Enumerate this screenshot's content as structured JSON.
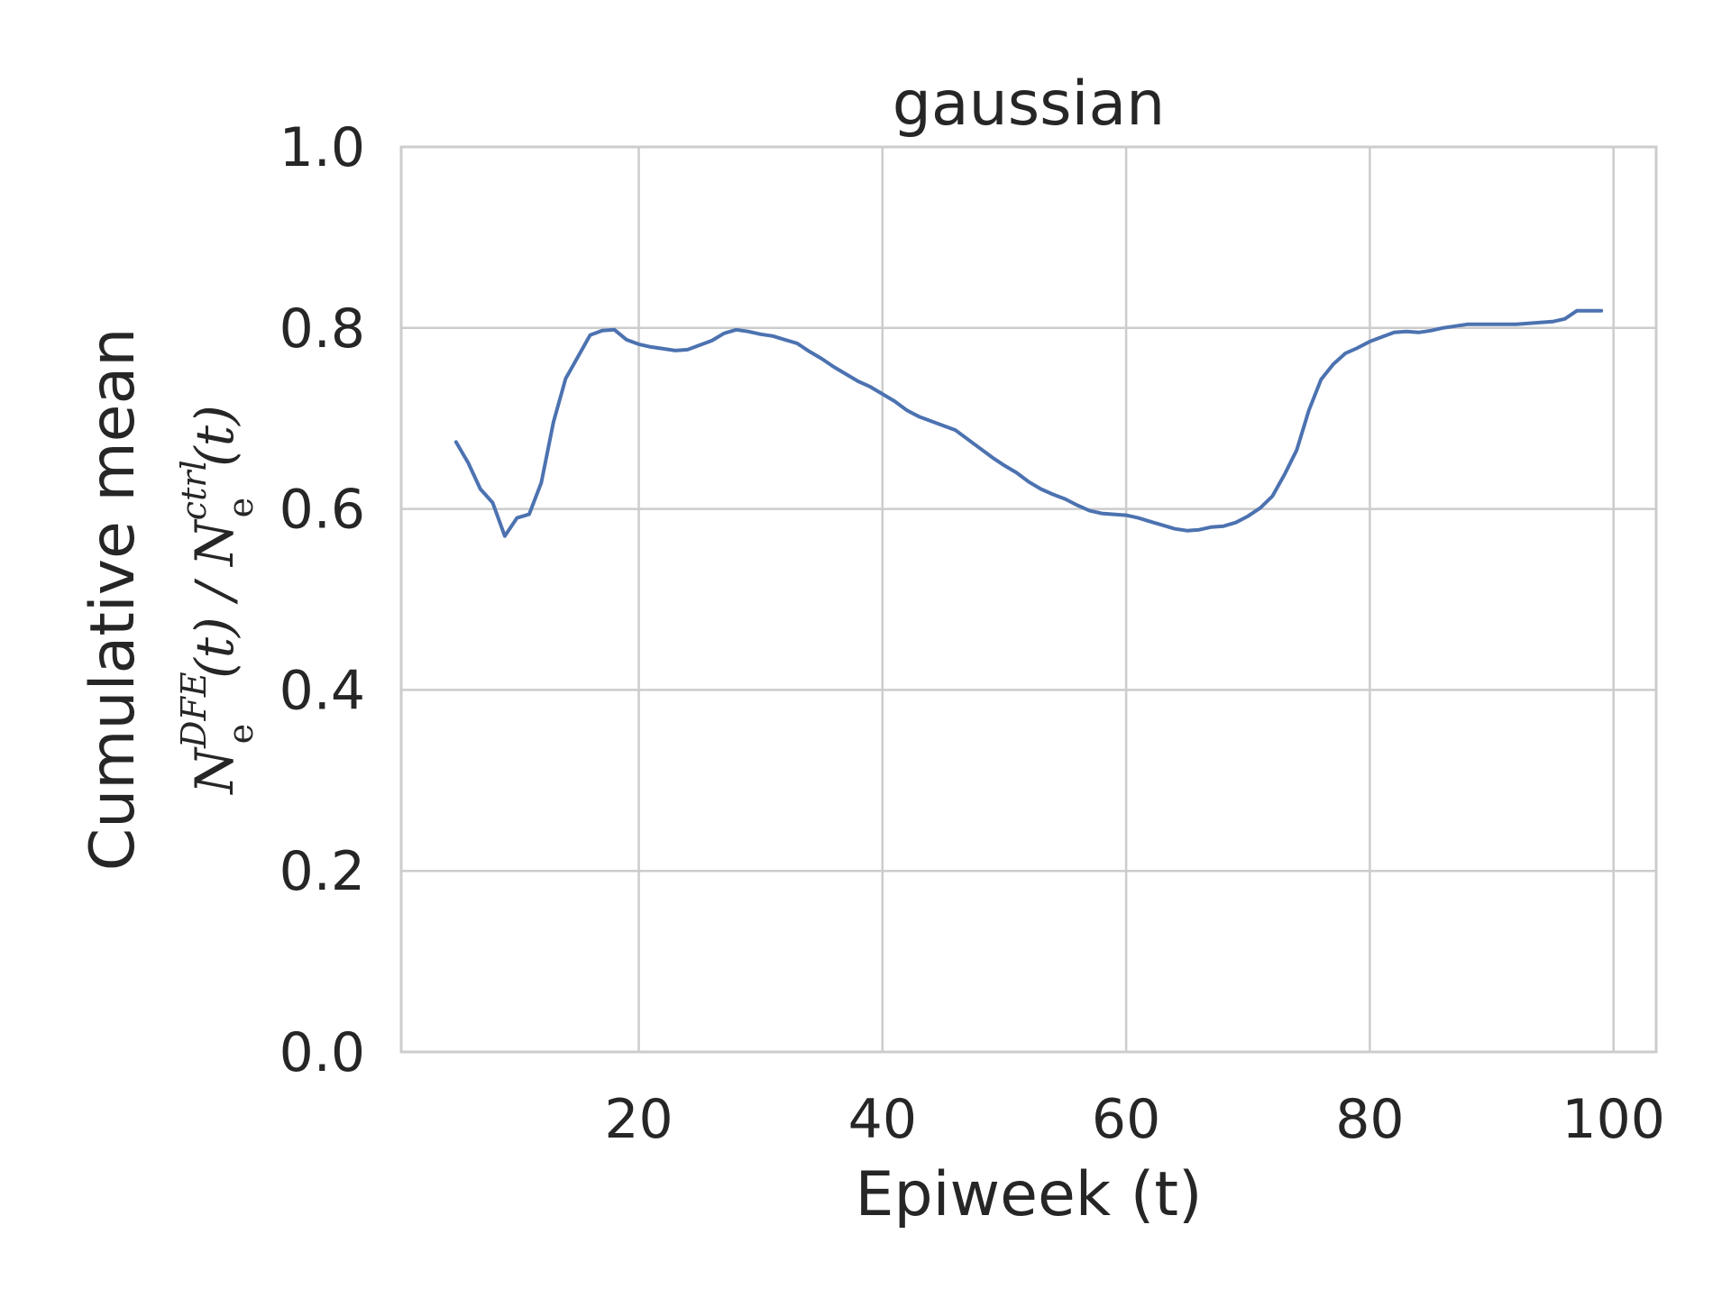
{
  "chart_data": {
    "type": "line",
    "title": "gaussian",
    "xlabel": "Epiweek (t)",
    "ylabel_line1": "Cumulative mean",
    "ylabel_line2": {
      "n1": "N",
      "sub1": "e",
      "sup1": "DFE",
      "mid": "(t) / ",
      "n2": "N",
      "sub2": "e",
      "sup2": "ctrl",
      "end": "(t)"
    },
    "xlim": [
      0.5,
      103.5
    ],
    "ylim": [
      0,
      1
    ],
    "xticks": [
      20,
      40,
      60,
      80,
      100
    ],
    "xtick_labels": [
      "20",
      "40",
      "60",
      "80",
      "100"
    ],
    "yticks": [
      0,
      0.2,
      0.4,
      0.6,
      0.8,
      1.0
    ],
    "ytick_labels": [
      "0.0",
      "0.2",
      "0.4",
      "0.6",
      "0.8",
      "1.0"
    ],
    "grid": true,
    "series": [
      {
        "color": "#4c72b0",
        "x": [
          5,
          6,
          7,
          8,
          9,
          10,
          11,
          12,
          13,
          14,
          15,
          16,
          17,
          18,
          19,
          20,
          21,
          22,
          23,
          24,
          25,
          26,
          27,
          28,
          29,
          30,
          31,
          32,
          33,
          34,
          35,
          36,
          37,
          38,
          39,
          40,
          41,
          42,
          43,
          44,
          45,
          46,
          47,
          48,
          49,
          50,
          51,
          52,
          53,
          54,
          55,
          56,
          57,
          58,
          59,
          60,
          61,
          62,
          63,
          64,
          65,
          66,
          67,
          68,
          69,
          70,
          71,
          72,
          73,
          74,
          75,
          76,
          77,
          78,
          79,
          80,
          81,
          82,
          83,
          84,
          85,
          86,
          87,
          88,
          89,
          90,
          91,
          92,
          93,
          94,
          95,
          96,
          97,
          98,
          99
        ],
        "y": [
          0.674,
          0.651,
          0.622,
          0.607,
          0.57,
          0.59,
          0.594,
          0.629,
          0.696,
          0.744,
          0.768,
          0.792,
          0.797,
          0.798,
          0.787,
          0.782,
          0.779,
          0.777,
          0.775,
          0.776,
          0.781,
          0.786,
          0.794,
          0.798,
          0.796,
          0.793,
          0.791,
          0.787,
          0.783,
          0.774,
          0.766,
          0.757,
          0.749,
          0.741,
          0.735,
          0.727,
          0.719,
          0.709,
          0.702,
          0.697,
          0.692,
          0.687,
          0.677,
          0.667,
          0.657,
          0.648,
          0.64,
          0.63,
          0.622,
          0.616,
          0.611,
          0.604,
          0.598,
          0.595,
          0.594,
          0.593,
          0.59,
          0.586,
          0.582,
          0.578,
          0.576,
          0.577,
          0.58,
          0.581,
          0.585,
          0.592,
          0.601,
          0.614,
          0.638,
          0.665,
          0.709,
          0.743,
          0.76,
          0.772,
          0.778,
          0.785,
          0.79,
          0.795,
          0.796,
          0.795,
          0.797,
          0.8,
          0.802,
          0.804,
          0.804,
          0.804,
          0.804,
          0.804,
          0.805,
          0.806,
          0.807,
          0.81,
          0.819,
          0.819,
          0.819
        ]
      }
    ]
  }
}
